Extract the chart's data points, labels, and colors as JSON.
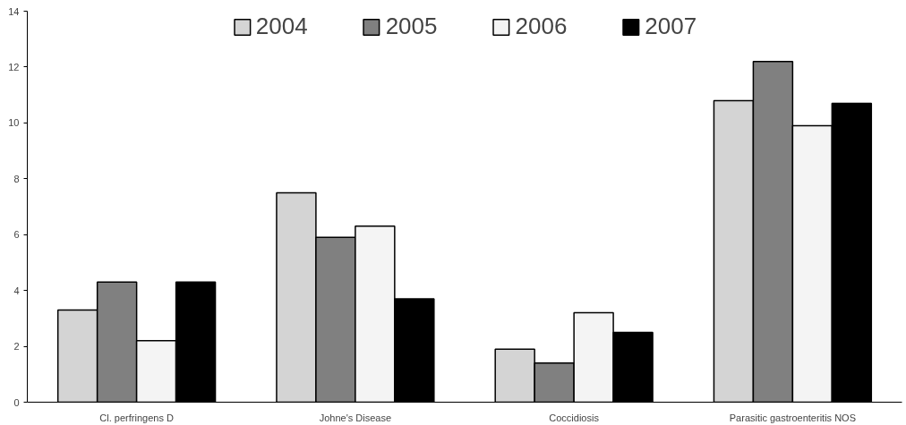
{
  "chart_data": {
    "type": "bar",
    "categories": [
      "Cl. perfringens D",
      "Johne's Disease",
      "Coccidiosis",
      "Parasitic gastroenteritis NOS"
    ],
    "series": [
      {
        "name": "2004",
        "color": "#d4d4d4",
        "values": [
          3.3,
          7.5,
          1.9,
          10.8
        ]
      },
      {
        "name": "2005",
        "color": "#808080",
        "values": [
          4.3,
          5.9,
          1.4,
          12.2
        ]
      },
      {
        "name": "2006",
        "color": "#f4f4f4",
        "values": [
          2.2,
          6.3,
          3.2,
          9.9
        ]
      },
      {
        "name": "2007",
        "color": "#000000",
        "values": [
          4.3,
          3.7,
          2.5,
          10.7
        ]
      }
    ],
    "ylim": [
      0,
      14
    ],
    "yticks": [
      0,
      2,
      4,
      6,
      8,
      10,
      12,
      14
    ],
    "grid": false,
    "legend": "top"
  }
}
